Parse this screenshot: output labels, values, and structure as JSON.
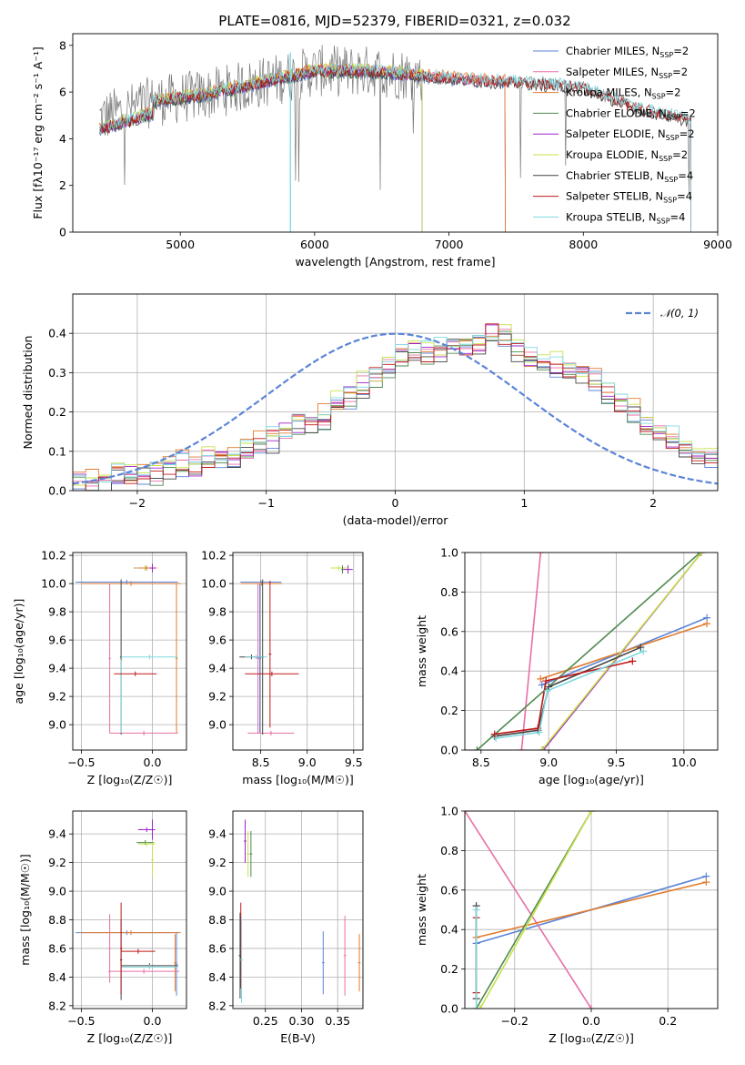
{
  "title": "PLATE=0816, MJD=52379, FIBERID=0321, z=0.032",
  "colors": {
    "Chabrier MILES": "#5b84d8",
    "Salpeter MILES": "#e86fa6",
    "Kroupa MILES": "#e07b2c",
    "Chabrier ELODIE": "#4f8a4f",
    "Salpeter ELODIE": "#a020c8",
    "Kroupa ELODIE": "#c7e04a",
    "Chabrier STELIB": "#444444",
    "Salpeter STELIB": "#c01818",
    "Kroupa STELIB": "#7fd8e0",
    "data": "#777777",
    "gauss": "#5b84d8"
  },
  "chart_data": [
    {
      "type": "line",
      "title": "PLATE=0816, MJD=52379, FIBERID=0321, z=0.032",
      "xlabel": "wavelength [Angstrom, rest frame]",
      "ylabel": "Flux [f_λ 10^-17 erg cm^-2 s^-1 A^-1]",
      "xlim": [
        4200,
        9000
      ],
      "ylim": [
        0,
        8.5
      ],
      "xticks": [
        "5000",
        "6000",
        "7000",
        "8000",
        "9000"
      ],
      "yticks": [
        "0",
        "2",
        "4",
        "6",
        "8"
      ],
      "grid": false,
      "legend_position": "top-right",
      "legend": [
        {
          "name": "Chabrier MILES",
          "nssp": "2"
        },
        {
          "name": "Salpeter MILES",
          "nssp": "2"
        },
        {
          "name": "Kroupa MILES",
          "nssp": "2"
        },
        {
          "name": "Chabrier ELODIE",
          "nssp": "2"
        },
        {
          "name": "Salpeter ELODIE",
          "nssp": "2"
        },
        {
          "name": "Kroupa ELODIE",
          "nssp": "2"
        },
        {
          "name": "Chabrier STELIB",
          "nssp": "4"
        },
        {
          "name": "Salpeter STELIB",
          "nssp": "4"
        },
        {
          "name": "Kroupa STELIB",
          "nssp": "4"
        }
      ],
      "continuum": {
        "x": [
          4400,
          4800,
          5200,
          5600,
          6000,
          6400,
          6800,
          7200,
          7600,
          8000,
          8400,
          8800
        ],
        "y": [
          4.9,
          5.6,
          5.9,
          6.4,
          6.9,
          6.9,
          6.7,
          6.5,
          6.4,
          6.2,
          5.3,
          4.8
        ]
      },
      "model_ranges": [
        {
          "name": "Chabrier MILES",
          "x": [
            4400,
            7420
          ]
        },
        {
          "name": "Salpeter MILES",
          "x": [
            4400,
            7420
          ]
        },
        {
          "name": "Kroupa MILES",
          "x": [
            4400,
            7420
          ]
        },
        {
          "name": "Chabrier ELODIE",
          "x": [
            4400,
            6800
          ]
        },
        {
          "name": "Salpeter ELODIE",
          "x": [
            4400,
            6800
          ]
        },
        {
          "name": "Kroupa ELODIE",
          "x": [
            4400,
            6800
          ]
        },
        {
          "name": "Chabrier STELIB",
          "x": [
            4400,
            8800
          ]
        },
        {
          "name": "Salpeter STELIB",
          "x": [
            4400,
            8800
          ]
        },
        {
          "name": "Kroupa STELIB",
          "x": [
            4400,
            8800
          ]
        }
      ]
    },
    {
      "type": "histogram",
      "xlabel": "(data-model)/error",
      "ylabel": "Normed distribution",
      "xlim": [
        -2.5,
        2.5
      ],
      "ylim": [
        0,
        0.5
      ],
      "xticks": [
        "−2",
        "−1",
        "0",
        "1",
        "2"
      ],
      "yticks": [
        "0.0",
        "0.1",
        "0.2",
        "0.3",
        "0.4"
      ],
      "grid": true,
      "legend_position": "top-right",
      "gauss_label": "N(0,1)",
      "bins": [
        -2.5,
        -2.4,
        -2.3,
        -2.2,
        -2.1,
        -2.0,
        -1.9,
        -1.8,
        -1.7,
        -1.6,
        -1.5,
        -1.4,
        -1.3,
        -1.2,
        -1.1,
        -1.0,
        -0.9,
        -0.8,
        -0.7,
        -0.6,
        -0.5,
        -0.4,
        -0.3,
        -0.2,
        -0.1,
        0.0,
        0.1,
        0.2,
        0.3,
        0.4,
        0.5,
        0.6,
        0.7,
        0.8,
        0.9,
        1.0,
        1.1,
        1.2,
        1.3,
        1.4,
        1.5,
        1.6,
        1.7,
        1.8,
        1.9,
        2.0,
        2.1,
        2.2,
        2.3,
        2.4
      ],
      "base_hist": [
        0.02,
        0.03,
        0.02,
        0.04,
        0.04,
        0.05,
        0.04,
        0.06,
        0.07,
        0.06,
        0.08,
        0.09,
        0.09,
        0.1,
        0.12,
        0.13,
        0.15,
        0.17,
        0.18,
        0.19,
        0.22,
        0.24,
        0.27,
        0.29,
        0.32,
        0.34,
        0.35,
        0.35,
        0.36,
        0.37,
        0.37,
        0.38,
        0.4,
        0.39,
        0.35,
        0.33,
        0.32,
        0.32,
        0.31,
        0.3,
        0.28,
        0.25,
        0.22,
        0.2,
        0.17,
        0.15,
        0.13,
        0.11,
        0.1,
        0.09
      ]
    },
    {
      "type": "scatter",
      "xlabel": "Z [log10(Z/Z☉)]",
      "ylabel": "age [log10(age/yr)]",
      "xlim": [
        -0.56,
        0.24
      ],
      "ylim": [
        8.82,
        10.22
      ],
      "xticks": [
        -0.5,
        0.0
      ],
      "yticks": [
        9.0,
        9.2,
        9.4,
        9.6,
        9.8,
        10.0,
        10.2
      ],
      "points": [
        {
          "s": "Chabrier MILES",
          "x": -0.18,
          "xe": 0.36,
          "y": 10.01,
          "ye": 0
        },
        {
          "s": "Salpeter MILES",
          "x": -0.3,
          "xe": 0,
          "y": 9.47,
          "ye": 0.53
        },
        {
          "s": "Salpeter MILES",
          "x": -0.06,
          "xe": 0.24,
          "y": 8.94,
          "ye": 0
        },
        {
          "s": "Kroupa MILES",
          "x": -0.15,
          "xe": 0.35,
          "y": 10.0,
          "ye": 0
        },
        {
          "s": "Kroupa MILES",
          "x": 0.17,
          "xe": 0,
          "y": 9.47,
          "ye": 0.53
        },
        {
          "s": "Chabrier STELIB",
          "x": -0.22,
          "xe": 0,
          "y": 9.48,
          "ye": 0.55
        },
        {
          "s": "Kroupa STELIB",
          "x": -0.02,
          "xe": 0.2,
          "y": 9.48,
          "ye": 0
        },
        {
          "s": "Kroupa STELIB",
          "x": -0.22,
          "xe": 0,
          "y": 9.2,
          "ye": 0.26
        },
        {
          "s": "Salpeter STELIB",
          "x": -0.12,
          "xe": 0.15,
          "y": 9.36,
          "ye": 0
        },
        {
          "s": "Chabrier ELODIE",
          "x": -0.05,
          "xe": 0.08,
          "y": 10.11,
          "ye": 0
        },
        {
          "s": "Kroupa ELODIE",
          "x": -0.05,
          "xe": 0.07,
          "y": 10.11,
          "ye": 0
        },
        {
          "s": "Kroupa MILES",
          "x": -0.04,
          "xe": 0.07,
          "y": 10.11,
          "ye": 0
        },
        {
          "s": "Salpeter ELODIE",
          "x": 0.0,
          "xe": 0.02,
          "y": 10.11,
          "ye": 0.03
        }
      ]
    },
    {
      "type": "scatter",
      "xlabel": "mass [log10(M/M☉)]",
      "ylabel": "",
      "xlim": [
        8.2,
        9.6
      ],
      "ylim": [
        8.82,
        10.22
      ],
      "xticks": [
        8.5,
        9.0,
        9.5
      ],
      "yticks": [
        9.0,
        9.2,
        9.4,
        9.6,
        9.8,
        10.0,
        10.2
      ],
      "points": [
        {
          "s": "Chabrier MILES",
          "x": 8.5,
          "xe": 0.22,
          "y": 10.01,
          "ye": 0
        },
        {
          "s": "Chabrier MILES",
          "x": 8.49,
          "xe": 0,
          "y": 9.47,
          "ye": 0.53
        },
        {
          "s": "Salpeter MILES",
          "x": 8.61,
          "xe": 0.25,
          "y": 8.94,
          "ye": 0
        },
        {
          "s": "Salpeter MILES",
          "x": 8.47,
          "xe": 0,
          "y": 9.47,
          "ye": 0.53
        },
        {
          "s": "Kroupa MILES",
          "x": 8.51,
          "xe": 0.22,
          "y": 10.0,
          "ye": 0
        },
        {
          "s": "Chabrier STELIB",
          "x": 8.52,
          "xe": 0,
          "y": 9.48,
          "ye": 0.55
        },
        {
          "s": "Chabrier STELIB",
          "x": 8.4,
          "xe": 0.13,
          "y": 9.48,
          "ye": 0
        },
        {
          "s": "Kroupa STELIB",
          "x": 8.45,
          "xe": 0.12,
          "y": 9.48,
          "ye": 0
        },
        {
          "s": "Salpeter STELIB",
          "x": 8.62,
          "xe": 0.29,
          "y": 9.36,
          "ye": 0
        },
        {
          "s": "Salpeter STELIB",
          "x": 8.6,
          "xe": 0,
          "y": 9.5,
          "ye": 0.52
        },
        {
          "s": "Kroupa ELODIE",
          "x": 9.34,
          "xe": 0.09,
          "y": 10.11,
          "ye": 0
        },
        {
          "s": "Chabrier ELODIE",
          "x": 9.38,
          "xe": 0,
          "y": 10.1,
          "ye": 0.03
        },
        {
          "s": "Salpeter ELODIE",
          "x": 9.44,
          "xe": 0.05,
          "y": 10.1,
          "ye": 0.03
        }
      ]
    },
    {
      "type": "line",
      "xlabel": "age [log10(age/yr)]",
      "ylabel": "mass weight",
      "xlim": [
        8.38,
        10.25
      ],
      "ylim": [
        0,
        1
      ],
      "xticks": [
        8.5,
        9.0,
        9.5,
        10.0
      ],
      "yticks": [
        0.0,
        0.2,
        0.4,
        0.6,
        0.8,
        1.0
      ],
      "series": [
        {
          "s": "Chabrier MILES",
          "x": [
            8.95,
            10.17
          ],
          "y": [
            0.33,
            0.67
          ]
        },
        {
          "s": "Salpeter MILES",
          "x": [
            8.8,
            8.94
          ],
          "y": [
            0.0,
            1.0
          ]
        },
        {
          "s": "Kroupa MILES",
          "x": [
            8.94,
            10.17
          ],
          "y": [
            0.36,
            0.64
          ]
        },
        {
          "s": "Chabrier ELODIE",
          "x": [
            8.47,
            10.12
          ],
          "y": [
            0.0,
            1.0
          ]
        },
        {
          "s": "Salpeter ELODIE",
          "x": [
            8.96,
            10.13
          ],
          "y": [
            0.0,
            1.0
          ]
        },
        {
          "s": "Kroupa ELODIE",
          "x": [
            8.95,
            10.13
          ],
          "y": [
            0.0,
            1.0
          ]
        },
        {
          "s": "Chabrier STELIB",
          "x": [
            8.6,
            8.92,
            9.0,
            9.68
          ],
          "y": [
            0.07,
            0.1,
            0.32,
            0.52
          ]
        },
        {
          "s": "Salpeter STELIB",
          "x": [
            8.6,
            8.92,
            8.98,
            9.62
          ],
          "y": [
            0.08,
            0.11,
            0.35,
            0.45
          ]
        },
        {
          "s": "Kroupa STELIB",
          "x": [
            8.61,
            8.93,
            8.99,
            9.7
          ],
          "y": [
            0.06,
            0.09,
            0.3,
            0.5
          ]
        }
      ]
    },
    {
      "type": "scatter",
      "xlabel": "Z [log10(Z/Z☉)]",
      "ylabel": "mass [log10(M/M☉)]",
      "xlim": [
        -0.56,
        0.24
      ],
      "ylim": [
        8.18,
        9.56
      ],
      "xticks": [
        -0.5,
        0.0
      ],
      "yticks": [
        8.2,
        8.4,
        8.6,
        8.8,
        9.0,
        9.2,
        9.4
      ],
      "points": [
        {
          "s": "Chabrier MILES",
          "x": -0.18,
          "xe": 0.36,
          "y": 8.71,
          "ye": 0
        },
        {
          "s": "Chabrier MILES",
          "x": 0.17,
          "xe": 0,
          "y": 8.49,
          "ye": 0.22
        },
        {
          "s": "Salpeter MILES",
          "x": -0.3,
          "xe": 0,
          "y": 8.6,
          "ye": 0.24
        },
        {
          "s": "Salpeter MILES",
          "x": -0.06,
          "xe": 0.25,
          "y": 8.44,
          "ye": 0
        },
        {
          "s": "Kroupa MILES",
          "x": -0.15,
          "xe": 0.35,
          "y": 8.71,
          "ye": 0
        },
        {
          "s": "Kroupa MILES",
          "x": 0.16,
          "xe": 0,
          "y": 8.5,
          "ye": 0.2
        },
        {
          "s": "Chabrier STELIB",
          "x": -0.22,
          "xe": 0,
          "y": 8.52,
          "ye": 0.28
        },
        {
          "s": "Chabrier STELIB",
          "x": -0.02,
          "xe": 0.2,
          "y": 8.48,
          "ye": 0
        },
        {
          "s": "Kroupa STELIB",
          "x": -0.02,
          "xe": 0.2,
          "y": 8.47,
          "ye": 0
        },
        {
          "s": "Salpeter STELIB",
          "x": -0.22,
          "xe": 0,
          "y": 8.6,
          "ye": 0.32
        },
        {
          "s": "Salpeter STELIB",
          "x": -0.1,
          "xe": 0.12,
          "y": 8.58,
          "ye": 0
        },
        {
          "s": "Salpeter ELODIE",
          "x": -0.04,
          "xe": 0.06,
          "y": 9.43,
          "ye": 0
        },
        {
          "s": "Salpeter ELODIE",
          "x": 0.0,
          "xe": 0,
          "y": 9.43,
          "ye": 0.07
        },
        {
          "s": "Chabrier ELODIE",
          "x": -0.05,
          "xe": 0.06,
          "y": 9.34,
          "ye": 0
        },
        {
          "s": "Kroupa ELODIE",
          "x": -0.04,
          "xe": 0.06,
          "y": 9.33,
          "ye": 0
        },
        {
          "s": "Kroupa ELODIE",
          "x": 0.0,
          "xe": 0,
          "y": 9.22,
          "ye": 0.12
        }
      ]
    },
    {
      "type": "scatter",
      "xlabel": "E(B-V)",
      "ylabel": "",
      "xlim": [
        0.205,
        0.385
      ],
      "ylim": [
        8.18,
        9.56
      ],
      "xticks": [
        0.25,
        0.3,
        0.35
      ],
      "yticks": [
        8.2,
        8.4,
        8.6,
        8.8,
        9.0,
        9.2,
        9.4
      ],
      "points": [
        {
          "s": "Chabrier STELIB",
          "x": 0.215,
          "xe": 0,
          "y": 8.55,
          "ye": 0.3
        },
        {
          "s": "Salpeter STELIB",
          "x": 0.216,
          "xe": 0,
          "y": 8.62,
          "ye": 0.3
        },
        {
          "s": "Kroupa STELIB",
          "x": 0.217,
          "xe": 0,
          "y": 8.52,
          "ye": 0.3
        },
        {
          "s": "Salpeter ELODIE",
          "x": 0.222,
          "xe": 0,
          "y": 9.35,
          "ye": 0.15
        },
        {
          "s": "Kroupa ELODIE",
          "x": 0.226,
          "xe": 0,
          "y": 9.26,
          "ye": 0.16
        },
        {
          "s": "Chabrier ELODIE",
          "x": 0.23,
          "xe": 0,
          "y": 9.26,
          "ye": 0.16
        },
        {
          "s": "Chabrier MILES",
          "x": 0.33,
          "xe": 0,
          "y": 8.5,
          "ye": 0.22
        },
        {
          "s": "Salpeter MILES",
          "x": 0.36,
          "xe": 0,
          "y": 8.55,
          "ye": 0.28
        },
        {
          "s": "Kroupa MILES",
          "x": 0.38,
          "xe": 0,
          "y": 8.5,
          "ye": 0.2
        }
      ]
    },
    {
      "type": "line",
      "xlabel": "Z [log10(Z/Z☉)]",
      "ylabel": "mass weight",
      "xlim": [
        -0.33,
        0.33
      ],
      "ylim": [
        0,
        1
      ],
      "xticks": [
        -0.2,
        0.0,
        0.2
      ],
      "yticks": [
        0.0,
        0.2,
        0.4,
        0.6,
        0.8,
        1.0
      ],
      "series": [
        {
          "s": "Chabrier MILES",
          "x": [
            -0.3,
            0.3
          ],
          "y": [
            0.33,
            0.67
          ]
        },
        {
          "s": "Salpeter MILES",
          "x": [
            -0.33,
            0.0
          ],
          "y": [
            1.0,
            0.0
          ]
        },
        {
          "s": "Kroupa MILES",
          "x": [
            -0.3,
            0.3
          ],
          "y": [
            0.36,
            0.64
          ]
        },
        {
          "s": "Chabrier ELODIE",
          "x": [
            -0.3,
            0.0
          ],
          "y": [
            0.0,
            1.0
          ]
        },
        {
          "s": "Kroupa ELODIE",
          "x": [
            -0.29,
            0.0
          ],
          "y": [
            0.0,
            1.0
          ]
        },
        {
          "s": "Chabrier STELIB",
          "x": [
            -0.3,
            -0.3
          ],
          "y": [
            0.05,
            0.52
          ]
        },
        {
          "s": "Salpeter STELIB",
          "x": [
            -0.3,
            -0.3
          ],
          "y": [
            0.08,
            0.46
          ]
        },
        {
          "s": "Kroupa STELIB",
          "x": [
            -0.3,
            -0.3
          ],
          "y": [
            0.0,
            0.5
          ]
        }
      ]
    }
  ]
}
